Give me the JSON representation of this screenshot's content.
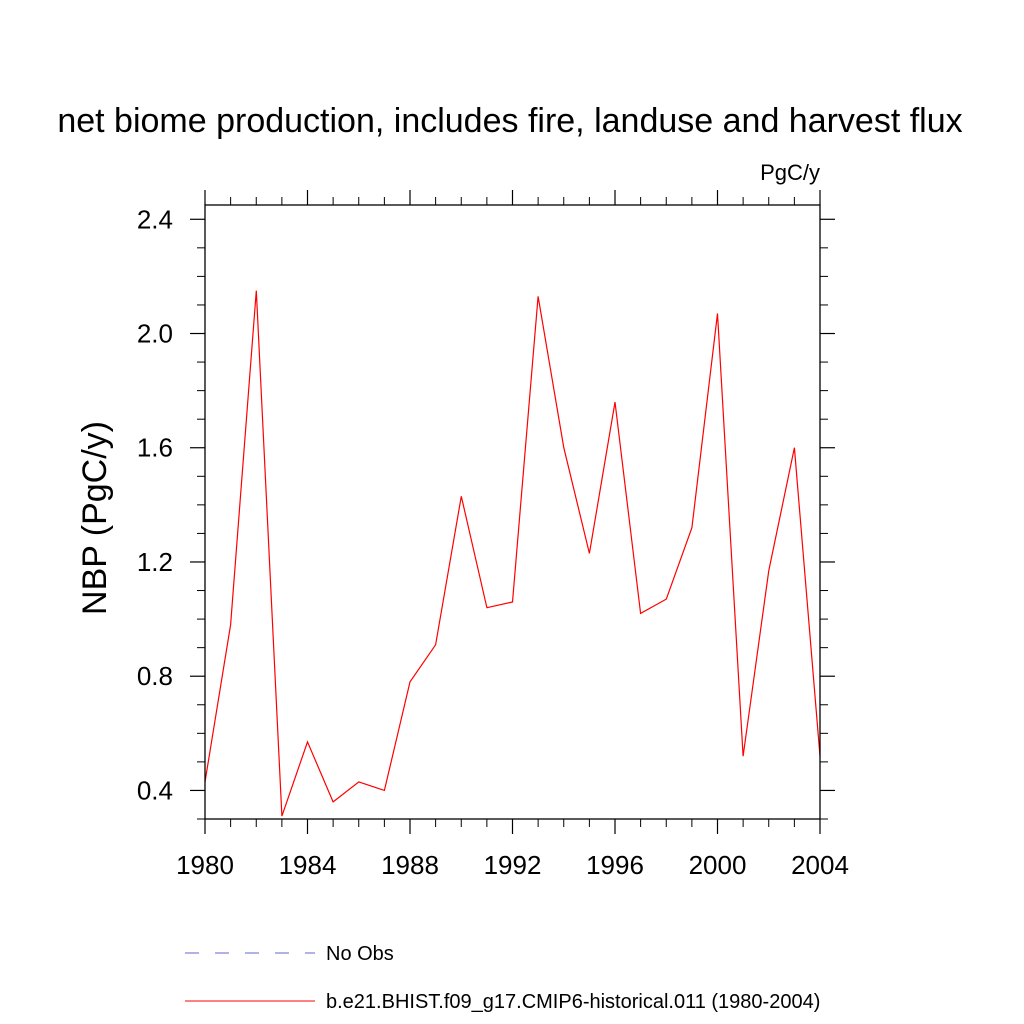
{
  "chart_data": {
    "type": "line",
    "title": "net biome production, includes fire, landuse and harvest flux",
    "units_label": "PgC/y",
    "ylabel": "NBP  (PgC/y)",
    "xlabel": "",
    "xlim": [
      1980,
      2004
    ],
    "ylim": [
      0.3,
      2.45
    ],
    "x_ticks": [
      1980,
      1984,
      1988,
      1992,
      1996,
      2000,
      2004
    ],
    "x_tick_labels": [
      "1980",
      "1984",
      "1988",
      "1992",
      "1996",
      "2000",
      "2004"
    ],
    "y_ticks": [
      0.4,
      0.8,
      1.2,
      1.6,
      2.0,
      2.4
    ],
    "y_tick_labels": [
      "0.4",
      "0.8",
      "1.2",
      "1.6",
      "2.0",
      "2.4"
    ],
    "grid": false,
    "series": [
      {
        "name": "b.e21.BHIST.f09_g17.CMIP6-historical.011 (1980-2004)",
        "color": "#ff0000",
        "style": "solid",
        "x": [
          1980,
          1981,
          1982,
          1983,
          1984,
          1985,
          1986,
          1987,
          1988,
          1989,
          1990,
          1991,
          1992,
          1993,
          1994,
          1995,
          1996,
          1997,
          1998,
          1999,
          2000,
          2001,
          2002,
          2003,
          2004
        ],
        "y": [
          0.43,
          0.98,
          2.15,
          0.31,
          0.57,
          0.36,
          0.43,
          0.4,
          0.78,
          0.91,
          1.43,
          1.04,
          1.06,
          2.13,
          1.6,
          1.23,
          1.76,
          1.02,
          1.07,
          1.32,
          2.07,
          0.52,
          1.17,
          1.6,
          0.52
        ]
      }
    ],
    "legend": {
      "placement": "bottom",
      "entries": [
        {
          "label": "No Obs",
          "color": "#6666cc",
          "style": "dashed"
        },
        {
          "label": "b.e21.BHIST.f09_g17.CMIP6-historical.011 (1980-2004)",
          "color": "#ff0000",
          "style": "solid"
        }
      ]
    }
  }
}
